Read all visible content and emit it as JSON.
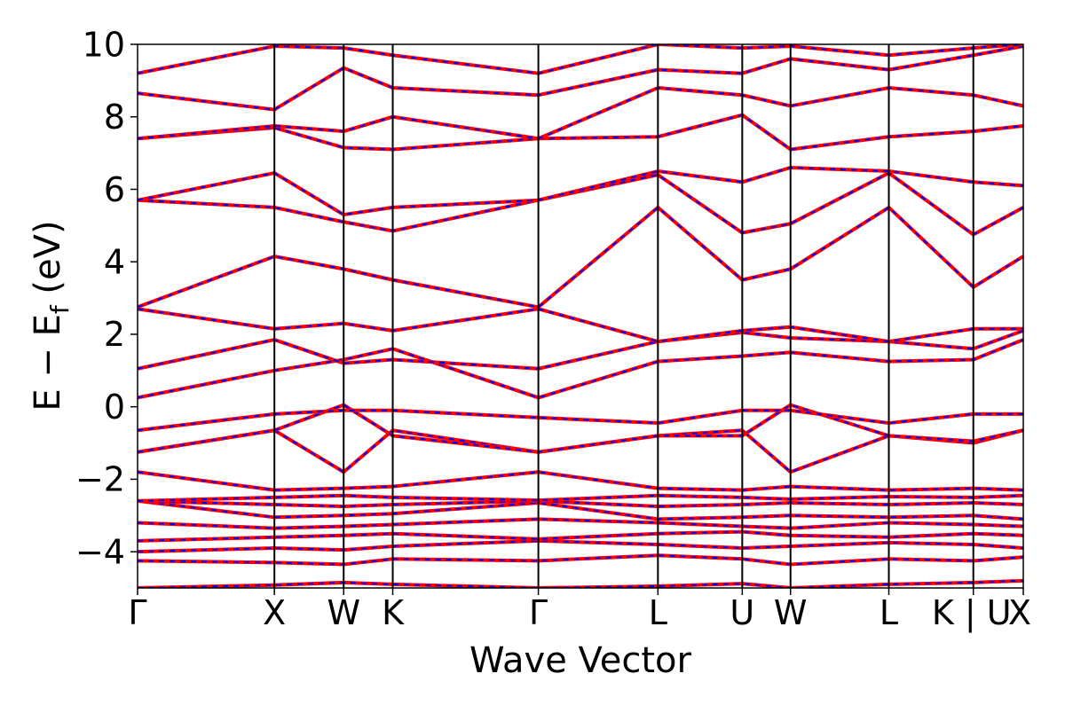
{
  "chart_data": {
    "type": "line",
    "title": "",
    "xlabel": "Wave Vector",
    "ylabel": "E − E_f (eV)",
    "ylabel_parts": {
      "main": "E − E",
      "subscript": "f",
      "unit": " (eV)"
    },
    "ylim": [
      -5,
      10
    ],
    "yticks": [
      -4,
      -2,
      0,
      2,
      4,
      6,
      8,
      10
    ],
    "ytick_labels": [
      "−4",
      "−2",
      "0",
      "2",
      "4",
      "6",
      "8",
      "10"
    ],
    "xlim": [
      0,
      1
    ],
    "grid": false,
    "legend": "none",
    "colors": {
      "band_solid": "#ff0000",
      "band_dashed": "#0000ff",
      "kpoint_lines": "#000000",
      "frame": "#000000"
    },
    "kpoints": [
      {
        "label": "Γ",
        "x": 0.0
      },
      {
        "label": "X",
        "x": 0.1545
      },
      {
        "label": "W",
        "x": 0.2327
      },
      {
        "label": "K",
        "x": 0.2881
      },
      {
        "label": "Γ",
        "x": 0.4525
      },
      {
        "label": "L",
        "x": 0.5875
      },
      {
        "label": "U",
        "x": 0.6827
      },
      {
        "label": "W",
        "x": 0.7372
      },
      {
        "label": "L",
        "x": 0.8482
      },
      {
        "label": "K | U",
        "x": 0.9436
      },
      {
        "label": "X",
        "x": 1.0
      }
    ],
    "series": [
      {
        "values": [
          -5.0,
          -4.92,
          -4.85,
          -4.9,
          -5.0,
          -4.95,
          -4.88,
          -5.0,
          -4.9,
          -4.85,
          -4.8
        ]
      },
      {
        "values": [
          -4.25,
          -4.3,
          -4.35,
          -4.2,
          -4.25,
          -4.1,
          -4.2,
          -4.35,
          -4.2,
          -4.25,
          -4.15
        ]
      },
      {
        "values": [
          -4.0,
          -3.9,
          -3.95,
          -3.85,
          -3.7,
          -3.8,
          -3.9,
          -3.85,
          -3.75,
          -3.8,
          -3.9
        ]
      },
      {
        "values": [
          -3.7,
          -3.6,
          -3.55,
          -3.5,
          -3.65,
          -3.5,
          -3.45,
          -3.55,
          -3.6,
          -3.5,
          -3.55
        ]
      },
      {
        "values": [
          -3.2,
          -3.35,
          -3.3,
          -3.25,
          -3.1,
          -3.2,
          -3.3,
          -3.35,
          -3.2,
          -3.25,
          -3.3
        ]
      },
      {
        "values": [
          -2.6,
          -3.05,
          -3.0,
          -2.95,
          -2.65,
          -3.1,
          -3.05,
          -3.0,
          -3.05,
          -3.0,
          -3.1
        ]
      },
      {
        "values": [
          -2.6,
          -2.7,
          -2.75,
          -2.7,
          -2.6,
          -2.75,
          -2.7,
          -2.65,
          -2.7,
          -2.65,
          -2.7
        ]
      },
      {
        "values": [
          -2.6,
          -2.5,
          -2.45,
          -2.5,
          -2.58,
          -2.45,
          -2.5,
          -2.55,
          -2.48,
          -2.5,
          -2.45
        ]
      },
      {
        "values": [
          -1.8,
          -2.3,
          -2.25,
          -2.2,
          -1.8,
          -2.25,
          -2.3,
          -2.2,
          -2.3,
          -2.25,
          -2.3
        ]
      },
      {
        "values": [
          -1.25,
          -0.65,
          -1.8,
          -0.65,
          -1.25,
          -0.8,
          -0.65,
          -1.8,
          -0.8,
          -1.0,
          -0.65
        ]
      },
      {
        "values": [
          -1.25,
          -0.65,
          0.05,
          -0.8,
          -1.25,
          -0.8,
          -0.8,
          0.05,
          -0.8,
          -0.95,
          -0.65
        ]
      },
      {
        "values": [
          -0.65,
          -0.2,
          -0.1,
          -0.1,
          -0.3,
          -0.45,
          -0.1,
          -0.1,
          -0.45,
          -0.2,
          -0.2
        ]
      },
      {
        "values": [
          0.25,
          1.0,
          1.3,
          1.6,
          0.25,
          1.25,
          1.4,
          1.5,
          1.25,
          1.3,
          1.85
        ]
      },
      {
        "values": [
          1.05,
          1.85,
          1.2,
          1.3,
          1.05,
          1.8,
          2.05,
          1.9,
          1.8,
          1.6,
          2.1
        ]
      },
      {
        "values": [
          2.7,
          2.15,
          2.3,
          2.1,
          2.7,
          1.8,
          2.1,
          2.2,
          1.8,
          2.15,
          2.15
        ]
      },
      {
        "values": [
          2.75,
          4.15,
          3.8,
          3.5,
          2.75,
          5.5,
          3.5,
          3.8,
          5.5,
          3.3,
          4.15
        ]
      },
      {
        "values": [
          5.7,
          5.5,
          5.1,
          4.85,
          5.7,
          6.4,
          4.8,
          5.05,
          6.45,
          4.75,
          5.5
        ]
      },
      {
        "values": [
          5.7,
          6.45,
          5.3,
          5.5,
          5.7,
          6.5,
          6.2,
          6.6,
          6.5,
          6.2,
          6.1
        ]
      },
      {
        "values": [
          7.4,
          7.7,
          7.15,
          7.1,
          7.4,
          7.45,
          8.05,
          7.1,
          7.45,
          7.6,
          7.75
        ]
      },
      {
        "values": [
          7.4,
          7.75,
          7.6,
          8.0,
          7.4,
          8.8,
          8.6,
          8.3,
          8.8,
          8.6,
          8.3
        ]
      },
      {
        "values": [
          8.65,
          8.2,
          9.35,
          8.8,
          8.6,
          9.3,
          9.2,
          9.6,
          9.3,
          9.7,
          9.95
        ]
      },
      {
        "values": [
          9.2,
          9.95,
          9.9,
          9.7,
          9.2,
          10.0,
          9.9,
          9.95,
          9.7,
          9.9,
          10.0
        ]
      }
    ]
  }
}
